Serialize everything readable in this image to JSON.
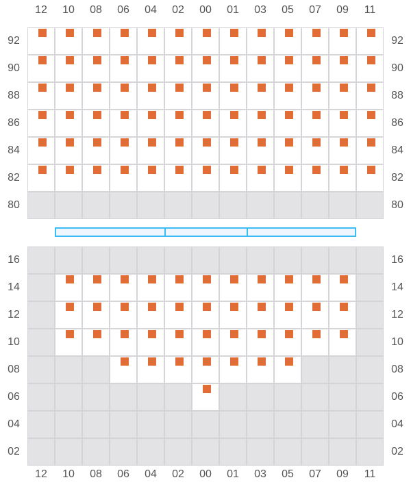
{
  "columns": [
    "12",
    "10",
    "08",
    "06",
    "04",
    "02",
    "00",
    "01",
    "03",
    "05",
    "07",
    "09",
    "11"
  ],
  "colors": {
    "seat": "#e06d36",
    "unavailable": "#e3e3e6",
    "grid": "#d4d4d8",
    "stage_border": "#3bbcf2",
    "stage_fill": "#eff6fe"
  },
  "sections": [
    {
      "rows": [
        {
          "label": "92",
          "open": [
            "12",
            "10",
            "08",
            "06",
            "04",
            "02",
            "00",
            "01",
            "03",
            "05",
            "07",
            "09",
            "11"
          ],
          "seats": [
            "12",
            "10",
            "08",
            "06",
            "04",
            "02",
            "00",
            "01",
            "03",
            "05",
            "07",
            "09",
            "11"
          ]
        },
        {
          "label": "90",
          "open": [
            "12",
            "10",
            "08",
            "06",
            "04",
            "02",
            "00",
            "01",
            "03",
            "05",
            "07",
            "09",
            "11"
          ],
          "seats": [
            "12",
            "10",
            "08",
            "06",
            "04",
            "02",
            "00",
            "01",
            "03",
            "05",
            "07",
            "09",
            "11"
          ]
        },
        {
          "label": "88",
          "open": [
            "12",
            "10",
            "08",
            "06",
            "04",
            "02",
            "00",
            "01",
            "03",
            "05",
            "07",
            "09",
            "11"
          ],
          "seats": [
            "12",
            "10",
            "08",
            "06",
            "04",
            "02",
            "00",
            "01",
            "03",
            "05",
            "07",
            "09",
            "11"
          ]
        },
        {
          "label": "86",
          "open": [
            "12",
            "10",
            "08",
            "06",
            "04",
            "02",
            "00",
            "01",
            "03",
            "05",
            "07",
            "09",
            "11"
          ],
          "seats": [
            "12",
            "10",
            "08",
            "06",
            "04",
            "02",
            "00",
            "01",
            "03",
            "05",
            "07",
            "09",
            "11"
          ]
        },
        {
          "label": "84",
          "open": [
            "12",
            "10",
            "08",
            "06",
            "04",
            "02",
            "00",
            "01",
            "03",
            "05",
            "07",
            "09",
            "11"
          ],
          "seats": [
            "12",
            "10",
            "08",
            "06",
            "04",
            "02",
            "00",
            "01",
            "03",
            "05",
            "07",
            "09",
            "11"
          ]
        },
        {
          "label": "82",
          "open": [
            "12",
            "10",
            "08",
            "06",
            "04",
            "02",
            "00",
            "01",
            "03",
            "05",
            "07",
            "09",
            "11"
          ],
          "seats": [
            "12",
            "10",
            "08",
            "06",
            "04",
            "02",
            "00",
            "01",
            "03",
            "05",
            "07",
            "09",
            "11"
          ]
        },
        {
          "label": "80",
          "open": [],
          "seats": []
        }
      ]
    },
    {
      "rows": [
        {
          "label": "16",
          "open": [],
          "seats": []
        },
        {
          "label": "14",
          "open": [
            "10",
            "08",
            "06",
            "04",
            "02",
            "00",
            "01",
            "03",
            "05",
            "07",
            "09"
          ],
          "seats": [
            "10",
            "08",
            "06",
            "04",
            "02",
            "00",
            "01",
            "03",
            "05",
            "07",
            "09"
          ]
        },
        {
          "label": "12",
          "open": [
            "10",
            "08",
            "06",
            "04",
            "02",
            "00",
            "01",
            "03",
            "05",
            "07",
            "09"
          ],
          "seats": [
            "10",
            "08",
            "06",
            "04",
            "02",
            "00",
            "01",
            "03",
            "05",
            "07",
            "09"
          ]
        },
        {
          "label": "10",
          "open": [
            "10",
            "08",
            "06",
            "04",
            "02",
            "00",
            "01",
            "03",
            "05",
            "07",
            "09"
          ],
          "seats": [
            "10",
            "08",
            "06",
            "04",
            "02",
            "00",
            "01",
            "03",
            "05",
            "07",
            "09"
          ]
        },
        {
          "label": "08",
          "open": [
            "06",
            "04",
            "02",
            "00",
            "01",
            "03",
            "05"
          ],
          "seats": [
            "06",
            "04",
            "02",
            "00",
            "01",
            "03",
            "05"
          ]
        },
        {
          "label": "06",
          "open": [
            "00"
          ],
          "seats": [
            "00"
          ]
        },
        {
          "label": "04",
          "open": [],
          "seats": []
        },
        {
          "label": "02",
          "open": [],
          "seats": []
        }
      ]
    }
  ]
}
